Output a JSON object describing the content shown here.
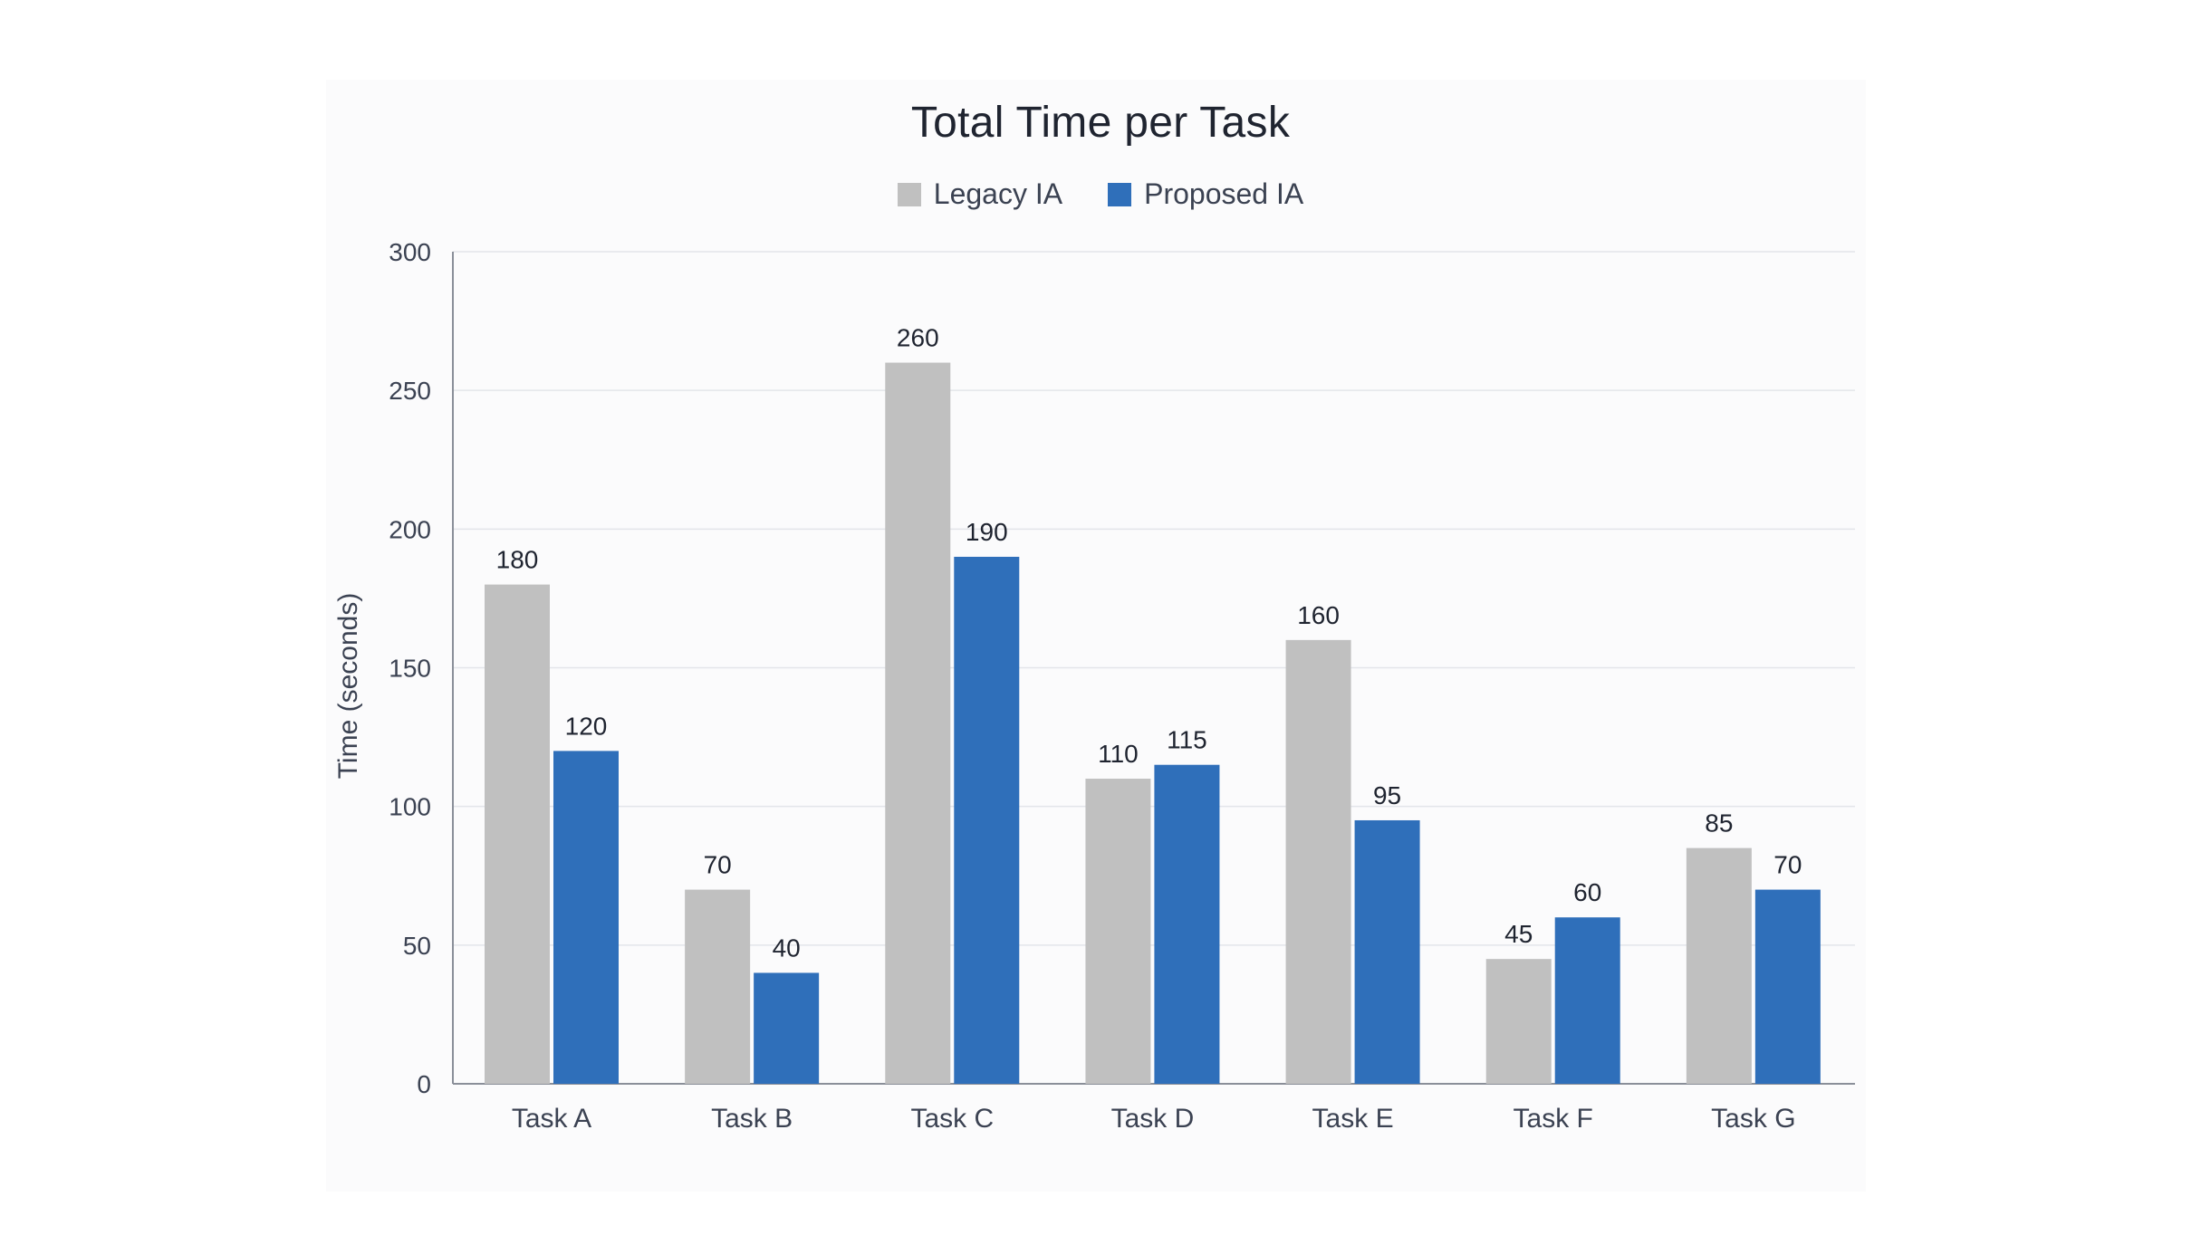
{
  "chart_data": {
    "type": "bar",
    "title": "Total Time per Task",
    "xlabel": "",
    "ylabel": "Time (seconds)",
    "ylim": [
      0,
      300
    ],
    "yticks": [
      0,
      50,
      100,
      150,
      200,
      250,
      300
    ],
    "grid": true,
    "legend_position": "top-center",
    "categories": [
      "Task A",
      "Task B",
      "Task C",
      "Task D",
      "Task E",
      "Task F",
      "Task G"
    ],
    "series": [
      {
        "name": "Legacy IA",
        "color": "#c0c0c0",
        "values": [
          180,
          70,
          260,
          110,
          160,
          45,
          85
        ]
      },
      {
        "name": "Proposed IA",
        "color": "#2f6fba",
        "values": [
          120,
          40,
          190,
          115,
          95,
          60,
          70
        ]
      }
    ]
  }
}
